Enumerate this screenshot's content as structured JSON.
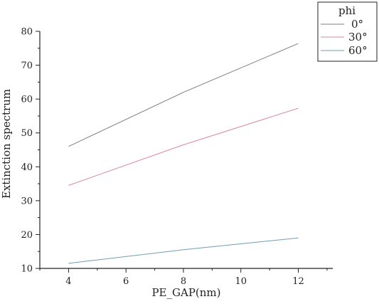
{
  "chart_data": {
    "type": "line",
    "xlabel": "PE_GAP(nm)",
    "ylabel": "Extinction spectrum",
    "xlim": [
      3,
      13.2
    ],
    "ylim": [
      10,
      80
    ],
    "xticks": [
      4,
      6,
      8,
      10,
      12
    ],
    "yticks": [
      10,
      20,
      30,
      40,
      50,
      60,
      70,
      80
    ],
    "grid": false,
    "legend": {
      "title": "phi",
      "placement": "top-right"
    },
    "series": [
      {
        "name": "0°",
        "color": "#7f7f7f",
        "x": [
          4,
          8,
          12
        ],
        "y": [
          46.0,
          62.0,
          76.4
        ]
      },
      {
        "name": "30°",
        "color": "#d9899a",
        "x": [
          4,
          8,
          12
        ],
        "y": [
          34.5,
          46.5,
          57.3
        ]
      },
      {
        "name": "60°",
        "color": "#6f9db5",
        "x": [
          4,
          8,
          12
        ],
        "y": [
          11.5,
          15.5,
          19.0
        ]
      }
    ]
  }
}
